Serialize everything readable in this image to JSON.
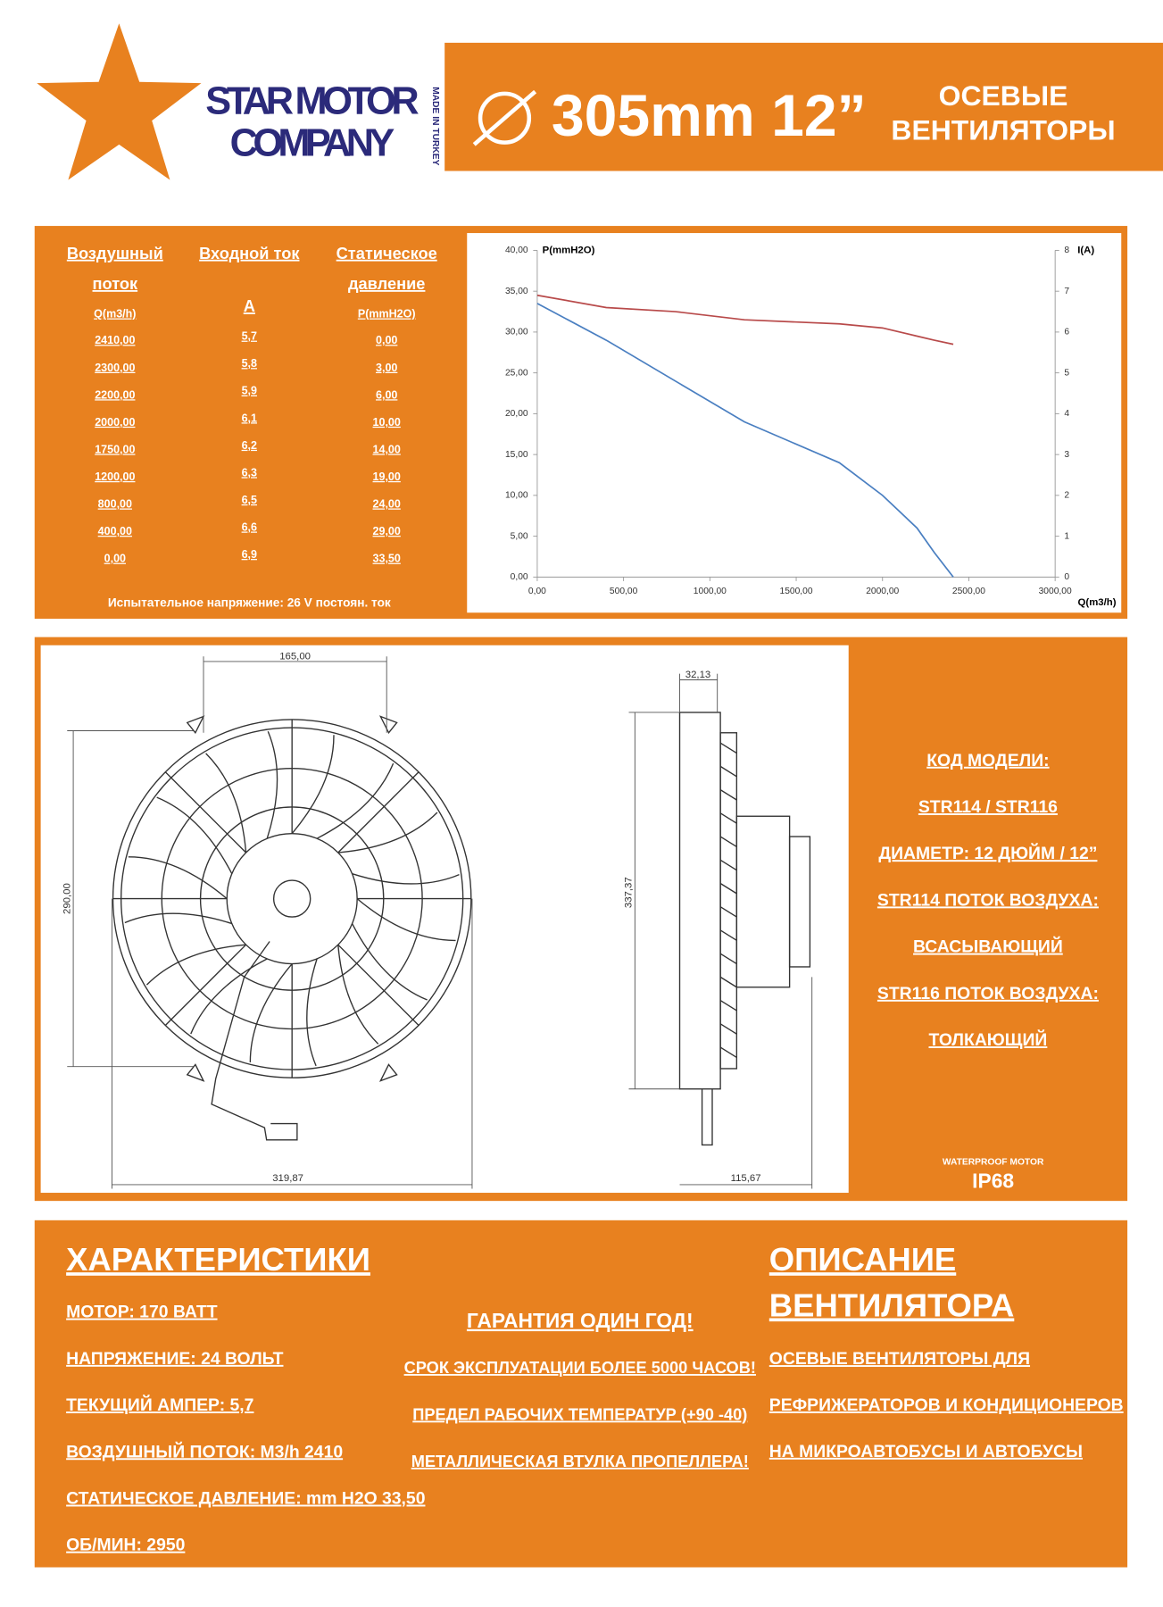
{
  "header": {
    "brand_line1": "STAR MOTOR",
    "brand_line2": "COMPANY",
    "made_in": "MADE IN TURKEY",
    "size": "305mm 12”",
    "product_line1": "ОСЕВЫЕ",
    "product_line2": "ВЕНТИЛЯТОРЫ"
  },
  "table": {
    "headers": [
      [
        "Воздушный",
        "поток"
      ],
      [
        "Входной ток"
      ],
      [
        "Статическое",
        "давление"
      ]
    ],
    "units": [
      "Q(m3/h)",
      "A",
      "P(mmH2O)"
    ],
    "rows": [
      [
        "2410,00",
        "5,7",
        "0,00"
      ],
      [
        "2300,00",
        "5,8",
        "3,00"
      ],
      [
        "2200,00",
        "5,9",
        "6,00"
      ],
      [
        "2000,00",
        "6,1",
        "10,00"
      ],
      [
        "1750,00",
        "6,2",
        "14,00"
      ],
      [
        "1200,00",
        "6,3",
        "19,00"
      ],
      [
        "800,00",
        "6,5",
        "24,00"
      ],
      [
        "400,00",
        "6,6",
        "29,00"
      ],
      [
        "0,00",
        "6,9",
        "33,50"
      ]
    ],
    "note": "Испытательное напряжение: 26 V постоян. ток"
  },
  "chart_data": {
    "type": "line",
    "y_label": "P(mmH2O)",
    "y2_label": "I(A)",
    "x_label": "Q(m3/h)",
    "xlim": [
      0,
      3000
    ],
    "xticks": [
      {
        "value": 0,
        "label": "0,00"
      },
      {
        "value": 500,
        "label": "500,00"
      },
      {
        "value": 1000,
        "label": "1000,00"
      },
      {
        "value": 1500,
        "label": "1500,00"
      },
      {
        "value": 2000,
        "label": "2000,00"
      },
      {
        "value": 2500,
        "label": "2500,00"
      },
      {
        "value": 3000,
        "label": "3000,00"
      }
    ],
    "ylim": [
      0,
      40
    ],
    "yticks": [
      {
        "value": 0,
        "label": "0,00"
      },
      {
        "value": 5,
        "label": "5,00"
      },
      {
        "value": 10,
        "label": "10,00"
      },
      {
        "value": 15,
        "label": "15,00"
      },
      {
        "value": 20,
        "label": "20,00"
      },
      {
        "value": 25,
        "label": "25,00"
      },
      {
        "value": 30,
        "label": "30,00"
      },
      {
        "value": 35,
        "label": "35,00"
      },
      {
        "value": 40,
        "label": "40,00"
      }
    ],
    "y2lim": [
      0,
      8
    ],
    "y2ticks": [
      0,
      1,
      2,
      3,
      4,
      5,
      6,
      7,
      8
    ],
    "series": [
      {
        "color": "#4a7fc1",
        "x": [
          0,
          400,
          800,
          1200,
          1750,
          2000,
          2200,
          2300,
          2410
        ],
        "values": [
          33.5,
          29,
          24,
          19,
          14,
          10,
          6,
          3,
          0
        ]
      },
      {
        "color": "#b84a4a",
        "axis": "y2",
        "x": [
          0,
          400,
          800,
          1200,
          1750,
          2000,
          2200,
          2300,
          2410
        ],
        "values": [
          6.9,
          6.6,
          6.5,
          6.3,
          6.2,
          6.1,
          5.9,
          5.8,
          5.7
        ]
      }
    ]
  },
  "drawing": {
    "dims": [
      "165,00",
      "290,00",
      "319,87",
      "32,13",
      "337,37",
      "115,67"
    ]
  },
  "model": {
    "lines": [
      "КОД МОДЕЛИ:",
      "STR114 / STR116",
      "ДИАМЕТР: 12 ДЮЙМ / 12”",
      "STR114 ПОТОК ВОЗДУХА:",
      "ВСАСЫВАЮЩИЙ",
      "STR116 ПОТОК ВОЗДУХА:",
      "ТОЛКАЮЩИЙ"
    ],
    "badge_caption": "WATERPROOF MOTOR",
    "badge": "IP68"
  },
  "specs": {
    "title": "ХАРАКТЕРИСТИКИ",
    "items": [
      "МОТОР: 170 ВАТТ",
      "НАПРЯЖЕНИЕ: 24 ВОЛЬТ",
      "ТЕКУЩИЙ АМПЕР: 5,7",
      "ВОЗДУШНЫЙ ПОТОК: M3/h 2410",
      "СТАТИЧЕСКОЕ ДАВЛЕНИЕ: mm H2O   33,50",
      "ОБ/МИН: 2950"
    ]
  },
  "warranty": {
    "items": [
      "ГАРАНТИЯ ОДИН ГОД!",
      "СРОК ЭКСПЛУАТАЦИИ БОЛЕЕ 5000 ЧАСОВ!",
      "ПРЕДЕЛ РАБОЧИХ ТЕМПЕРАТУР (+90 -40)",
      "МЕТАЛЛИЧЕСКАЯ ВТУЛКА ПРОПЕЛЛЕРА!"
    ]
  },
  "description": {
    "title_line1": "ОПИСАНИЕ",
    "title_line2": "ВЕНТИЛЯТОРА",
    "items": [
      "ОСЕВЫЕ ВЕНТИЛЯТОРЫ ДЛЯ",
      "РЕФРИЖЕРАТОРОВ И КОНДИЦИОНЕРОВ",
      "НА МИКРОАВТОБУСЫ И АВТОБУСЫ"
    ]
  }
}
